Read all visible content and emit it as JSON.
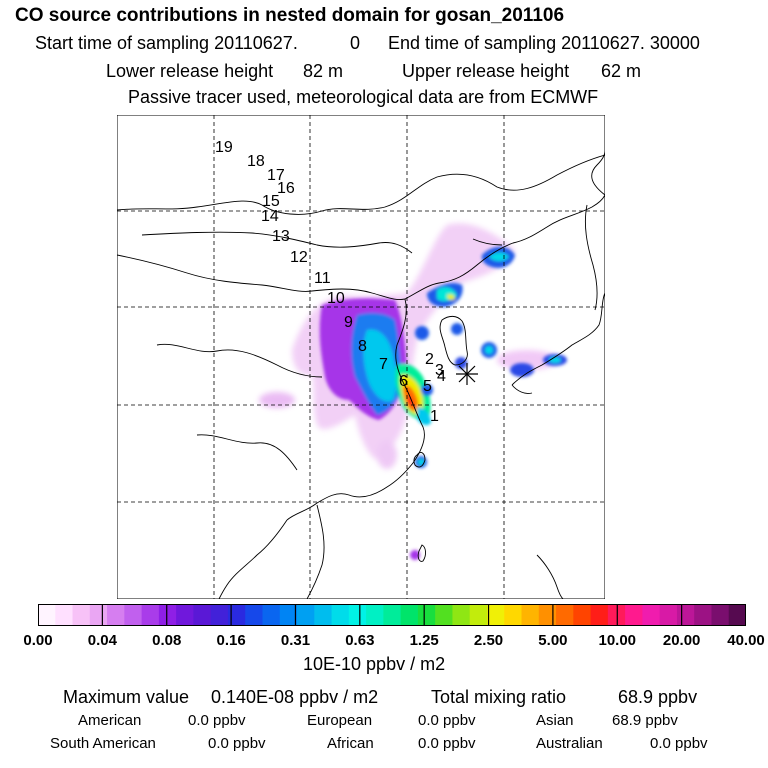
{
  "header": {
    "title": "CO  source contributions in nested domain for gosan_201106",
    "start_label": "Start time of sampling 20110627.",
    "start_hour": "0",
    "end_label": "End time of sampling 20110627. 30000",
    "lower_label": "Lower release height",
    "lower_value": "82 m",
    "upper_label": "Upper release height",
    "upper_value": "62 m",
    "note": "Passive tracer used, meteorological data are from ECMWF"
  },
  "map": {
    "trajectory_labels": [
      "1",
      "2",
      "3",
      "4",
      "5",
      "6",
      "7",
      "8",
      "9",
      "10",
      "11",
      "12",
      "13",
      "14",
      "15",
      "16",
      "17",
      "18",
      "19"
    ],
    "receptor_marker": "asterisk"
  },
  "colorbar": {
    "ticks": [
      "0.00",
      "0.04",
      "0.08",
      "0.16",
      "0.31",
      "0.63",
      "1.25",
      "2.50",
      "5.00",
      "10.00",
      "20.00",
      "40.00"
    ],
    "unit": "10E-10 ppbv / m2",
    "colors": [
      "#fff4ff",
      "#ffe0ff",
      "#f7c2f7",
      "#eaa6f3",
      "#d67ef0",
      "#c160ee",
      "#a93cea",
      "#8f1fe6",
      "#7018dc",
      "#5a18d6",
      "#4221d9",
      "#2a2ae0",
      "#1648ea",
      "#0a66f0",
      "#0084f4",
      "#00a0f2",
      "#00bdee",
      "#00dcea",
      "#00f2e6",
      "#00f0c4",
      "#00ec9a",
      "#00e46a",
      "#18de3e",
      "#52e020",
      "#8fe614",
      "#c2ec0c",
      "#f0f006",
      "#ffd800",
      "#ffb400",
      "#ff9000",
      "#ff6a00",
      "#ff4400",
      "#ff1e18",
      "#ff1a5a",
      "#ff1a8e",
      "#f01cae",
      "#d81aa6",
      "#bc1698",
      "#9c1284",
      "#7a0e6e",
      "#560a50"
    ]
  },
  "footer": {
    "max_label": "Maximum value",
    "max_value": "0.140E-08 ppbv / m2",
    "total_label": "Total mixing ratio",
    "total_value": "68.9 ppbv",
    "regions": [
      {
        "name": "American",
        "value": "0.0 ppbv"
      },
      {
        "name": "European",
        "value": "0.0 ppbv"
      },
      {
        "name": "Asian",
        "value": "68.9 ppbv"
      },
      {
        "name": "South American",
        "value": "0.0 ppbv"
      },
      {
        "name": "African",
        "value": "0.0 ppbv"
      },
      {
        "name": "Australian",
        "value": "0.0 ppbv"
      }
    ]
  }
}
